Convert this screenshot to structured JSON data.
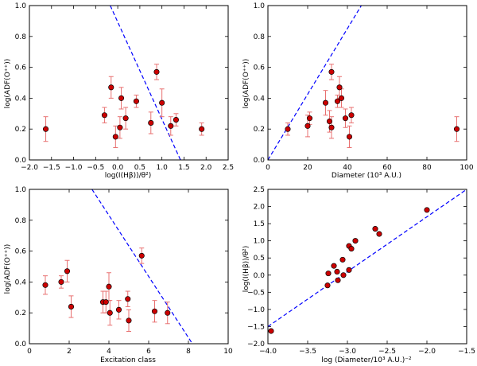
{
  "chart_data": [
    {
      "type": "scatter",
      "xlabel": "log(I(Hβ))/θ²)",
      "ylabel": "log(ADF(O⁺⁺))",
      "xlim": [
        -2.0,
        2.5
      ],
      "ylim": [
        0.0,
        1.0
      ],
      "xticks": [
        -2.0,
        -1.5,
        -1.0,
        -0.5,
        0.0,
        0.5,
        1.0,
        1.5,
        2.0,
        2.5
      ],
      "xtick_labels": [
        "−2.0",
        "−1.5",
        "−1.0",
        "−0.5",
        "0.0",
        "0.5",
        "1.0",
        "1.5",
        "2.0",
        "2.5"
      ],
      "yticks": [
        0.0,
        0.2,
        0.4,
        0.6,
        0.8,
        1.0
      ],
      "ytick_labels": [
        "0.0",
        "0.2",
        "0.4",
        "0.6",
        "0.8",
        "1.0"
      ],
      "points": [
        {
          "x": -1.63,
          "y": 0.2,
          "err": 0.08
        },
        {
          "x": -0.3,
          "y": 0.29,
          "err": 0.05
        },
        {
          "x": -0.15,
          "y": 0.47,
          "err": 0.07
        },
        {
          "x": -0.05,
          "y": 0.15,
          "err": 0.07
        },
        {
          "x": 0.05,
          "y": 0.21,
          "err": 0.07
        },
        {
          "x": 0.08,
          "y": 0.4,
          "err": 0.07
        },
        {
          "x": 0.18,
          "y": 0.27,
          "err": 0.07
        },
        {
          "x": 0.42,
          "y": 0.38,
          "err": 0.04
        },
        {
          "x": 0.75,
          "y": 0.24,
          "err": 0.07
        },
        {
          "x": 0.88,
          "y": 0.57,
          "err": 0.05
        },
        {
          "x": 1.0,
          "y": 0.37,
          "err": 0.09
        },
        {
          "x": 1.2,
          "y": 0.22,
          "err": 0.06
        },
        {
          "x": 1.32,
          "y": 0.26,
          "err": 0.04
        },
        {
          "x": 1.9,
          "y": 0.2,
          "err": 0.04
        }
      ],
      "line": [
        [
          -0.17,
          1.0
        ],
        [
          1.42,
          0.0
        ]
      ]
    },
    {
      "type": "scatter",
      "xlabel": "Diameter (10³ A.U.)",
      "ylabel": "log(ADF(O⁺⁺))",
      "xlim": [
        0,
        100
      ],
      "ylim": [
        0.0,
        1.0
      ],
      "xticks": [
        0,
        20,
        40,
        60,
        80,
        100
      ],
      "xtick_labels": [
        "0",
        "20",
        "40",
        "60",
        "80",
        "100"
      ],
      "yticks": [
        0.0,
        0.2,
        0.4,
        0.6,
        0.8,
        1.0
      ],
      "ytick_labels": [
        "0.0",
        "0.2",
        "0.4",
        "0.6",
        "0.8",
        "1.0"
      ],
      "points": [
        {
          "x": 10,
          "y": 0.2,
          "err": 0.04
        },
        {
          "x": 20,
          "y": 0.22,
          "err": 0.07
        },
        {
          "x": 21,
          "y": 0.27,
          "err": 0.04
        },
        {
          "x": 29,
          "y": 0.37,
          "err": 0.08
        },
        {
          "x": 31,
          "y": 0.25,
          "err": 0.07
        },
        {
          "x": 32,
          "y": 0.57,
          "err": 0.05
        },
        {
          "x": 32,
          "y": 0.21,
          "err": 0.07
        },
        {
          "x": 35,
          "y": 0.38,
          "err": 0.04
        },
        {
          "x": 36,
          "y": 0.47,
          "err": 0.07
        },
        {
          "x": 37,
          "y": 0.4,
          "err": 0.06
        },
        {
          "x": 39,
          "y": 0.27,
          "err": 0.06
        },
        {
          "x": 41,
          "y": 0.15,
          "err": 0.07
        },
        {
          "x": 42,
          "y": 0.29,
          "err": 0.05
        },
        {
          "x": 95,
          "y": 0.2,
          "err": 0.08
        }
      ],
      "line": [
        [
          0,
          0.0
        ],
        [
          47,
          1.0
        ]
      ]
    },
    {
      "type": "scatter",
      "xlabel": "Excitation class",
      "ylabel": "log(ADF(O⁺⁺))",
      "xlim": [
        0,
        10
      ],
      "ylim": [
        0.0,
        1.0
      ],
      "xticks": [
        0,
        2,
        4,
        6,
        8,
        10
      ],
      "xtick_labels": [
        "0",
        "2",
        "4",
        "6",
        "8",
        "10"
      ],
      "yticks": [
        0.0,
        0.2,
        0.4,
        0.6,
        0.8,
        1.0
      ],
      "ytick_labels": [
        "0.0",
        "0.2",
        "0.4",
        "0.6",
        "0.8",
        "1.0"
      ],
      "points": [
        {
          "x": 0.8,
          "y": 0.38,
          "err": 0.06
        },
        {
          "x": 1.6,
          "y": 0.4,
          "err": 0.04
        },
        {
          "x": 1.9,
          "y": 0.47,
          "err": 0.07
        },
        {
          "x": 2.1,
          "y": 0.24,
          "err": 0.07
        },
        {
          "x": 3.7,
          "y": 0.27,
          "err": 0.07
        },
        {
          "x": 3.85,
          "y": 0.27,
          "err": 0.07
        },
        {
          "x": 4.0,
          "y": 0.37,
          "err": 0.09
        },
        {
          "x": 4.05,
          "y": 0.2,
          "err": 0.08
        },
        {
          "x": 4.5,
          "y": 0.22,
          "err": 0.06
        },
        {
          "x": 4.95,
          "y": 0.29,
          "err": 0.05
        },
        {
          "x": 5.0,
          "y": 0.15,
          "err": 0.07
        },
        {
          "x": 5.65,
          "y": 0.57,
          "err": 0.05
        },
        {
          "x": 6.3,
          "y": 0.21,
          "err": 0.07
        },
        {
          "x": 6.95,
          "y": 0.2,
          "err": 0.07
        }
      ],
      "line": [
        [
          3.15,
          1.0
        ],
        [
          8.2,
          0.0
        ]
      ]
    },
    {
      "type": "scatter",
      "xlabel": "log (Diameter/10³ A.U.)⁻²",
      "ylabel": "log(I(Hβ))/θ²)",
      "xlim": [
        -4.0,
        -1.5
      ],
      "ylim": [
        -2.0,
        2.5
      ],
      "xticks": [
        -4.0,
        -3.5,
        -3.0,
        -2.5,
        -2.0,
        -1.5
      ],
      "xtick_labels": [
        "−4.0",
        "−3.5",
        "−3.0",
        "−2.5",
        "−2.0",
        "−1.5"
      ],
      "yticks": [
        -2.0,
        -1.5,
        -1.0,
        -0.5,
        0.0,
        0.5,
        1.0,
        1.5,
        2.0,
        2.5
      ],
      "ytick_labels": [
        "−2.0",
        "−1.5",
        "−1.0",
        "−0.5",
        "0.0",
        "0.5",
        "1.0",
        "1.5",
        "2.0",
        "2.5"
      ],
      "points": [
        {
          "x": -3.96,
          "y": -1.63
        },
        {
          "x": -3.24,
          "y": 0.05
        },
        {
          "x": -3.25,
          "y": -0.3
        },
        {
          "x": -3.17,
          "y": 0.27
        },
        {
          "x": -3.13,
          "y": 0.1
        },
        {
          "x": -3.12,
          "y": -0.15
        },
        {
          "x": -3.06,
          "y": 0.45
        },
        {
          "x": -3.05,
          "y": 0.0
        },
        {
          "x": -2.98,
          "y": 0.15
        },
        {
          "x": -2.98,
          "y": 0.85
        },
        {
          "x": -2.95,
          "y": 0.77
        },
        {
          "x": -2.9,
          "y": 1.0
        },
        {
          "x": -2.65,
          "y": 1.35
        },
        {
          "x": -2.6,
          "y": 1.2
        },
        {
          "x": -2.0,
          "y": 1.9
        }
      ],
      "line": [
        [
          -4.0,
          -1.5
        ],
        [
          -1.5,
          2.5
        ]
      ]
    }
  ],
  "colors": {
    "point_fill": "#cc0000",
    "point_edge": "#000000",
    "errorbar": "#e87070",
    "fit_line": "#0000ff",
    "axes": "#000000"
  }
}
